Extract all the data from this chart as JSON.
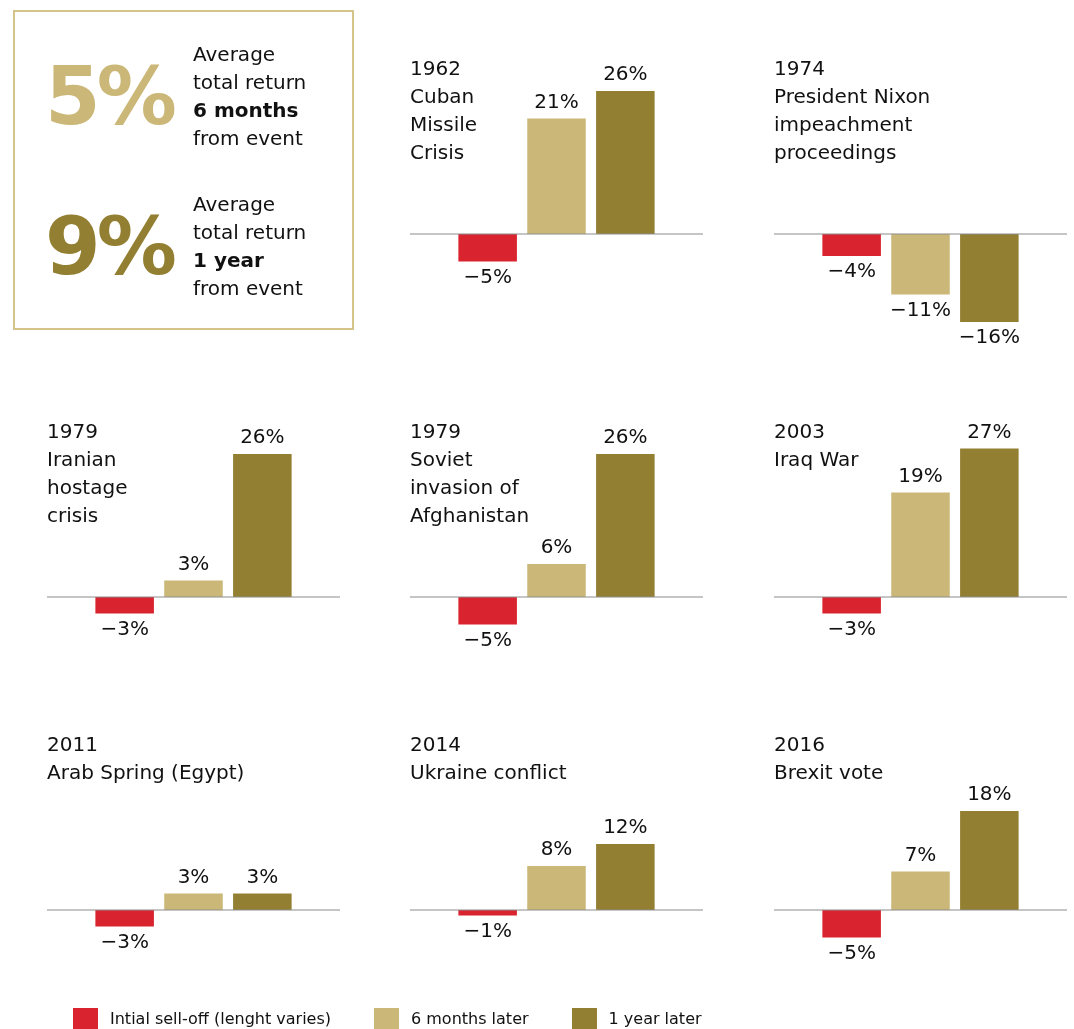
{
  "chart_data": [
    {
      "type": "other",
      "annotations": [
        "5%",
        "Average",
        "total return",
        "6 months",
        "from event",
        "9%",
        "Average",
        "total return",
        "1 year",
        "from event"
      ]
    },
    {
      "type": "bar",
      "title": "1962\nCuban\nMissile\nCrisis",
      "categories": [
        null
      ],
      "tick_labels": false,
      "ref_lines": [
        {
          "axis": "y",
          "value": 0,
          "color": "#8c8c8c"
        }
      ],
      "series": [
        {
          "color": "#d9232e",
          "values": [
            -5
          ],
          "value_labels": [
            "−5%"
          ]
        },
        {
          "color": "#cbb878",
          "values": [
            21
          ],
          "value_labels": [
            "21%"
          ]
        },
        {
          "color": "#937f31",
          "values": [
            26
          ],
          "value_labels": [
            "26%"
          ]
        }
      ]
    },
    {
      "type": "bar",
      "title": "1974\nPresident Nixon\nimpeachment\nproceedings",
      "categories": [
        null
      ],
      "tick_labels": false,
      "ref_lines": [
        {
          "axis": "y",
          "value": 0,
          "color": "#8c8c8c"
        }
      ],
      "series": [
        {
          "color": "#d9232e",
          "values": [
            -4
          ],
          "value_labels": [
            "−4%"
          ]
        },
        {
          "color": "#cbb878",
          "values": [
            -11
          ],
          "value_labels": [
            "−11%"
          ]
        },
        {
          "color": "#937f31",
          "values": [
            -16
          ],
          "value_labels": [
            "−16%"
          ]
        }
      ]
    },
    {
      "type": "bar",
      "title": "1979\nIranian\nhostage\ncrisis",
      "categories": [
        null
      ],
      "tick_labels": false,
      "ref_lines": [
        {
          "axis": "y",
          "value": 0,
          "color": "#8c8c8c"
        }
      ],
      "series": [
        {
          "color": "#d9232e",
          "values": [
            -3
          ],
          "value_labels": [
            "−3%"
          ]
        },
        {
          "color": "#cbb878",
          "values": [
            3
          ],
          "value_labels": [
            "3%"
          ]
        },
        {
          "color": "#937f31",
          "values": [
            26
          ],
          "value_labels": [
            "26%"
          ]
        }
      ]
    },
    {
      "type": "bar",
      "title": "1979\nSoviet\ninvasion of\nAfghanistan",
      "categories": [
        null
      ],
      "tick_labels": false,
      "ref_lines": [
        {
          "axis": "y",
          "value": 0,
          "color": "#8c8c8c"
        }
      ],
      "series": [
        {
          "color": "#d9232e",
          "values": [
            -5
          ],
          "value_labels": [
            "−5%"
          ]
        },
        {
          "color": "#cbb878",
          "values": [
            6
          ],
          "value_labels": [
            "6%"
          ]
        },
        {
          "color": "#937f31",
          "values": [
            26
          ],
          "value_labels": [
            "26%"
          ]
        }
      ]
    },
    {
      "type": "bar",
      "title": "2003\nIraq War",
      "categories": [
        null
      ],
      "tick_labels": false,
      "ref_lines": [
        {
          "axis": "y",
          "value": 0,
          "color": "#8c8c8c"
        }
      ],
      "series": [
        {
          "color": "#d9232e",
          "values": [
            -3
          ],
          "value_labels": [
            "−3%"
          ]
        },
        {
          "color": "#cbb878",
          "values": [
            19
          ],
          "value_labels": [
            "19%"
          ]
        },
        {
          "color": "#937f31",
          "values": [
            27
          ],
          "value_labels": [
            "27%"
          ]
        }
      ]
    },
    {
      "type": "bar",
      "title": "2011\nArab Spring (Egypt)",
      "categories": [
        null
      ],
      "tick_labels": false,
      "ref_lines": [
        {
          "axis": "y",
          "value": 0,
          "color": "#8c8c8c"
        }
      ],
      "series": [
        {
          "color": "#d9232e",
          "values": [
            -3
          ],
          "value_labels": [
            "−3%"
          ]
        },
        {
          "color": "#cbb878",
          "values": [
            3
          ],
          "value_labels": [
            "3%"
          ]
        },
        {
          "color": "#937f31",
          "values": [
            3
          ],
          "value_labels": [
            "3%"
          ]
        }
      ]
    },
    {
      "type": "bar",
      "title": "2014\nUkraine conflict",
      "categories": [
        null
      ],
      "tick_labels": false,
      "ref_lines": [
        {
          "axis": "y",
          "value": 0,
          "color": "#8c8c8c"
        }
      ],
      "series": [
        {
          "color": "#d9232e",
          "values": [
            -1
          ],
          "value_labels": [
            "−1%"
          ]
        },
        {
          "color": "#cbb878",
          "values": [
            8
          ],
          "value_labels": [
            "8%"
          ]
        },
        {
          "color": "#937f31",
          "values": [
            12
          ],
          "value_labels": [
            "12%"
          ]
        }
      ]
    },
    {
      "type": "bar",
      "title": "2016\nBrexit vote",
      "categories": [
        null
      ],
      "tick_labels": false,
      "legend": "bottom",
      "ref_lines": [
        {
          "axis": "y",
          "value": 0,
          "color": "#8c8c8c"
        }
      ],
      "series": [
        {
          "name": "Intial sell-off (lenght varies)",
          "color": "#d9232e",
          "values": [
            -5
          ],
          "value_labels": [
            "−5%"
          ]
        },
        {
          "name": "6 months later",
          "color": "#cbb878",
          "values": [
            7
          ],
          "value_labels": [
            "7%"
          ]
        },
        {
          "name": "1 year later",
          "color": "#937f31",
          "values": [
            18
          ],
          "value_labels": [
            "18%"
          ]
        }
      ]
    }
  ]
}
